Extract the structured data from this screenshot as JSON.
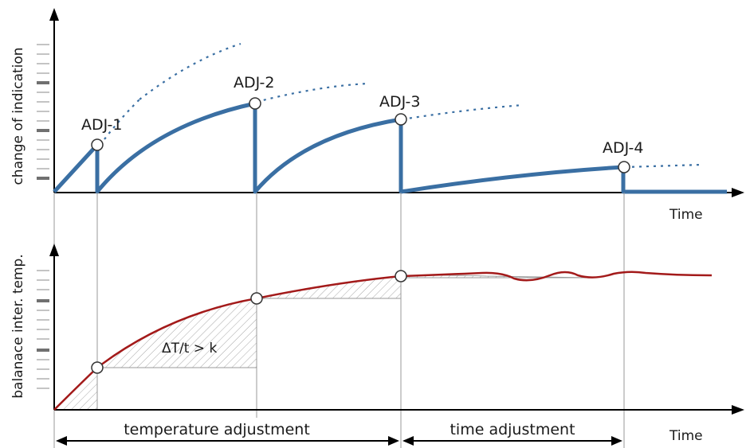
{
  "top_plot": {
    "y_label": "change of indication",
    "x_label": "Time",
    "adjustment_labels": [
      "ADJ-1",
      "ADJ-2",
      "ADJ-3",
      "ADJ-4"
    ],
    "curve_color": "#3a6fa3"
  },
  "bottom_plot": {
    "y_label": "balanace inter. temp.",
    "x_label": "Time",
    "inequality": "ΔT/t > k",
    "curve_color": "#a31a1a",
    "hatch_color": "#a0a0a0"
  },
  "ranges": {
    "temperature_adjustment": "temperature adjustment",
    "time_adjustment": "time adjustment"
  }
}
